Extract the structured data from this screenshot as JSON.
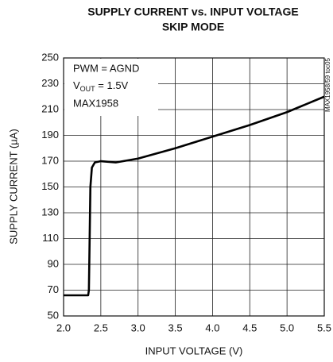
{
  "chart_data": {
    "type": "line",
    "title": "SUPPLY CURRENT vs. INPUT VOLTAGE",
    "subtitle": "SKIP MODE",
    "xlabel": "INPUT VOLTAGE (V)",
    "ylabel": "SUPPLY CURRENT (µA)",
    "side_note": "MAX1958/59 toc05",
    "annotations": [
      "PWM = AGND",
      {
        "main": "V",
        "sub": "OUT",
        "tail": " = 1.5V"
      },
      "MAX1958"
    ],
    "color": "#000000",
    "x": [
      2.0,
      2.2,
      2.33,
      2.34,
      2.36,
      2.38,
      2.42,
      2.5,
      2.6,
      2.7,
      2.8,
      3.0,
      3.5,
      4.0,
      4.5,
      5.0,
      5.5
    ],
    "values": [
      66,
      66,
      66,
      70,
      150,
      165,
      169,
      170,
      169.5,
      169,
      170,
      172,
      180,
      189,
      198,
      208,
      220
    ],
    "xlim": [
      2,
      5.5
    ],
    "xticks": [
      {
        "value": 2,
        "label": "2.0"
      },
      2.5,
      {
        "value": 3,
        "label": "3.0"
      },
      3.5,
      {
        "value": 4,
        "label": "4.0"
      },
      4.5,
      {
        "value": 5,
        "label": "5.0"
      },
      5.5
    ],
    "ylim": [
      50,
      250
    ],
    "yticks": [
      50,
      70,
      90,
      110,
      130,
      150,
      170,
      190,
      210,
      230,
      250
    ],
    "grid": true
  }
}
